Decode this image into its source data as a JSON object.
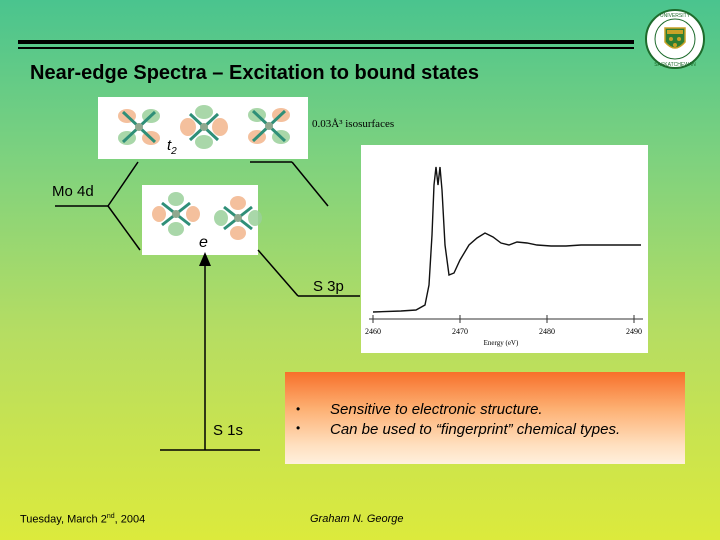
{
  "slide": {
    "title": "Near-edge Spectra – Excitation to bound states",
    "logo_text": "UNIVERSITY OF SASKATCHEWAN",
    "isosurface_note": "0.03Å³ isosurfaces",
    "t2_label": "t",
    "t2_sub": "2",
    "e_label": "e",
    "mo4d_label": "Mo 4d",
    "s3p_label": "S 3p",
    "s1s_label": "S 1s",
    "bullets": [
      "Sensitive to electronic structure.",
      "Can be used to “fingerprint” chemical types."
    ],
    "bullet_glyph": "•",
    "footer_left": "Tuesday, March 2",
    "footer_left_sup": "nd",
    "footer_left_tail": ", 2004",
    "footer_author": "Graham N. George"
  },
  "spectrum": {
    "x_ticks": [
      "2460",
      "2470",
      "2480",
      "2490"
    ],
    "xlabel": "Energy (eV)"
  },
  "colors": {
    "orbital_lobe_a": "#f2b58c",
    "orbital_lobe_b": "#9ad09a",
    "orbital_bond": "#2f8f78",
    "accent_orange": "#f7702a"
  }
}
